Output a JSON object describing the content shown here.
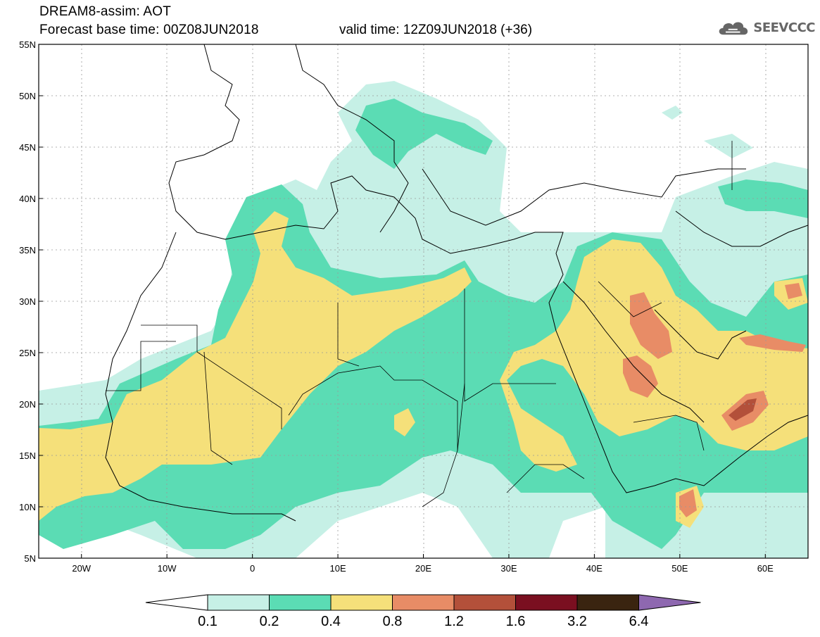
{
  "header": {
    "model_line": "DREAM8-assim: AOT",
    "base_time": "Forecast base time: 00Z08JUN2018",
    "valid_time": "valid time: 12Z09JUN2018 (+36)"
  },
  "logo": {
    "text": "SEEVCCC",
    "icon": "cloud-icon"
  },
  "map": {
    "projection": "equirectangular",
    "lon_range": [
      -25,
      65
    ],
    "lat_range": [
      5,
      55
    ],
    "lat_labels": [
      "5N",
      "10N",
      "15N",
      "20N",
      "25N",
      "30N",
      "35N",
      "40N",
      "45N",
      "50N",
      "55N"
    ],
    "lon_labels": [
      "20W",
      "10W",
      "0",
      "10E",
      "20E",
      "30E",
      "40E",
      "50E",
      "60E"
    ],
    "grid": "dotted",
    "variable": "Aerosol Optical Thickness (AOT)"
  },
  "colorbar": {
    "labels": [
      "0.1",
      "0.2",
      "0.4",
      "0.8",
      "1.2",
      "1.6",
      "3.2",
      "6.4"
    ],
    "colors": [
      "#ffffff",
      "#c6f0e6",
      "#5bdcb4",
      "#f5e07a",
      "#e88c66",
      "#b3503a",
      "#7a0f20",
      "#3a2410",
      "#8e68b0"
    ]
  },
  "colors": {
    "level1": "#c6f0e6",
    "level2": "#5bdcb4",
    "level3": "#f5e07a",
    "level4": "#e88c66",
    "level5": "#b3503a",
    "level6": "#7a0f20",
    "level7": "#3a2410"
  }
}
